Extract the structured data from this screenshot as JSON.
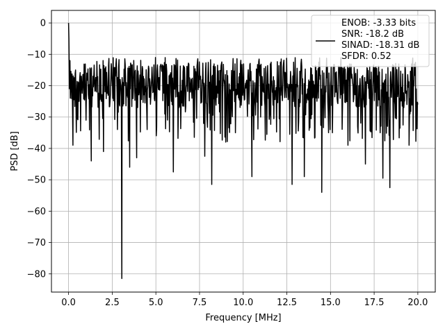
{
  "chart_data": {
    "type": "line",
    "title": "",
    "xlabel": "Frequency [MHz]",
    "ylabel": "PSD [dB]",
    "xlim": [
      -0.98,
      21.0
    ],
    "ylim": [
      -85.8,
      4.0
    ],
    "xticks": [
      0.0,
      2.5,
      5.0,
      7.5,
      10.0,
      12.5,
      15.0,
      17.5,
      20.0
    ],
    "xtick_labels": [
      "0.0",
      "2.5",
      "5.0",
      "7.5",
      "10.0",
      "12.5",
      "15.0",
      "17.5",
      "20.0"
    ],
    "yticks": [
      0,
      -10,
      -20,
      -30,
      -40,
      -50,
      -60,
      -70,
      -80
    ],
    "ytick_labels": [
      "0",
      "−10",
      "−20",
      "−30",
      "−40",
      "−50",
      "−60",
      "−70",
      "−80"
    ],
    "grid": true,
    "legend_placement": "top-right",
    "series": [
      {
        "name": "ENOB: -3.33 bits\nSNR: -18.2 dB\nSINAD: -18.31 dB\nSFDR: 0.52",
        "color": "#000000",
        "description": "dense noisy power spectral density trace, mostly between -30 and -12 dB",
        "x": [
          0.0,
          0.02,
          0.05,
          0.08,
          0.1,
          0.15,
          0.25,
          0.3,
          0.4,
          0.6,
          0.8,
          1.0,
          1.3,
          1.6,
          2.0,
          2.5,
          2.8,
          3.0,
          3.05,
          3.2,
          3.5,
          3.9,
          4.5,
          5.0,
          6.0,
          7.0,
          7.8,
          8.2,
          9.0,
          10.0,
          10.5,
          11.0,
          12.0,
          12.8,
          13.5,
          14.0,
          14.5,
          15.0,
          16.0,
          16.5,
          17.0,
          17.5,
          18.0,
          18.4,
          19.0,
          19.5,
          20.0
        ],
        "y": [
          0.0,
          -5.0,
          -21.0,
          -12.0,
          -24.0,
          -18.0,
          -39.0,
          -20.0,
          -15.0,
          -25.0,
          -20.0,
          -31.0,
          -44.0,
          -22.0,
          -41.0,
          -20.0,
          -34.0,
          -20.0,
          -81.5,
          -20.0,
          -46.0,
          -43.0,
          -34.0,
          -20.0,
          -47.5,
          -20.0,
          -42.5,
          -51.5,
          -38.0,
          -20.0,
          -49.0,
          -30.0,
          -20.0,
          -51.5,
          -49.0,
          -20.0,
          -54.0,
          -20.0,
          -39.0,
          -20.0,
          -45.0,
          -20.0,
          -49.5,
          -52.5,
          -20.0,
          -39.0,
          -26.0
        ]
      }
    ]
  }
}
